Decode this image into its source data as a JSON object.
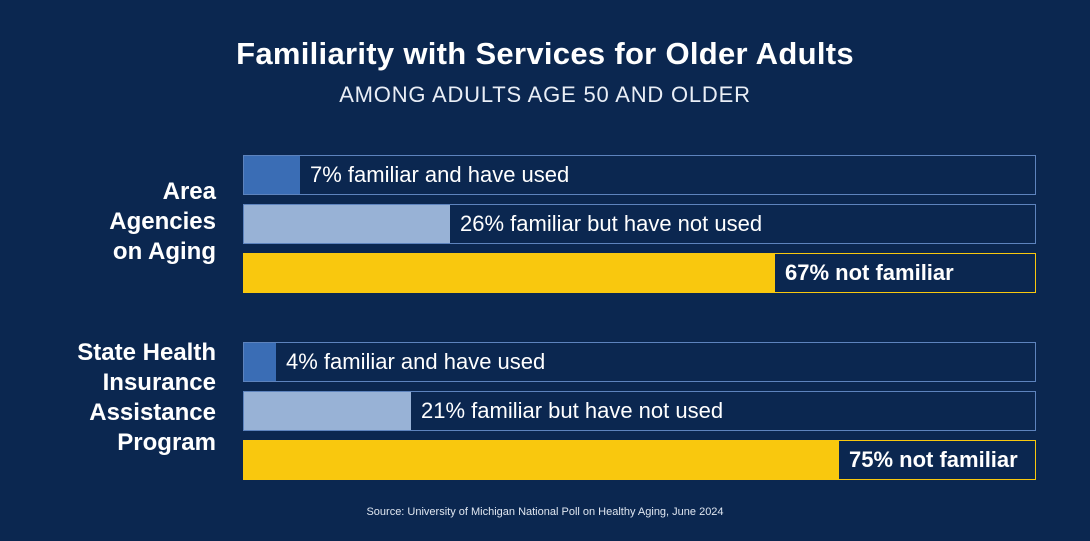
{
  "chart_data": {
    "type": "bar",
    "orientation": "horizontal",
    "title": "Familiarity with Services for Older Adults",
    "subtitle": "AMONG ADULTS AGE 50 AND OLDER",
    "unit": "%",
    "xlim": [
      0,
      100
    ],
    "groups": [
      {
        "label": "Area\nAgencies\non Aging",
        "bars": [
          {
            "category": "familiar and have used",
            "value": 7,
            "text": "7% familiar and have used",
            "color": "#3a6db5"
          },
          {
            "category": "familiar but have not used",
            "value": 26,
            "text": "26% familiar but have not used",
            "color": "#98b2d6"
          },
          {
            "category": "not familiar",
            "value": 67,
            "text": "67% not familiar",
            "color": "#f9c80e"
          }
        ]
      },
      {
        "label": "State Health\nInsurance\nAssistance\nProgram",
        "bars": [
          {
            "category": "familiar and have used",
            "value": 4,
            "text": "4% familiar and have used",
            "color": "#3a6db5"
          },
          {
            "category": "familiar but have not used",
            "value": 21,
            "text": "21% familiar but have not used",
            "color": "#98b2d6"
          },
          {
            "category": "not familiar",
            "value": 75,
            "text": "75% not familiar",
            "color": "#f9c80e"
          }
        ]
      }
    ],
    "source": "Source: University of Michigan National Poll on Healthy Aging, June 2024"
  },
  "colors": {
    "background": "#0b2750",
    "track_border": "#5d83bd",
    "track_border_highlight": "#f9c80e"
  }
}
